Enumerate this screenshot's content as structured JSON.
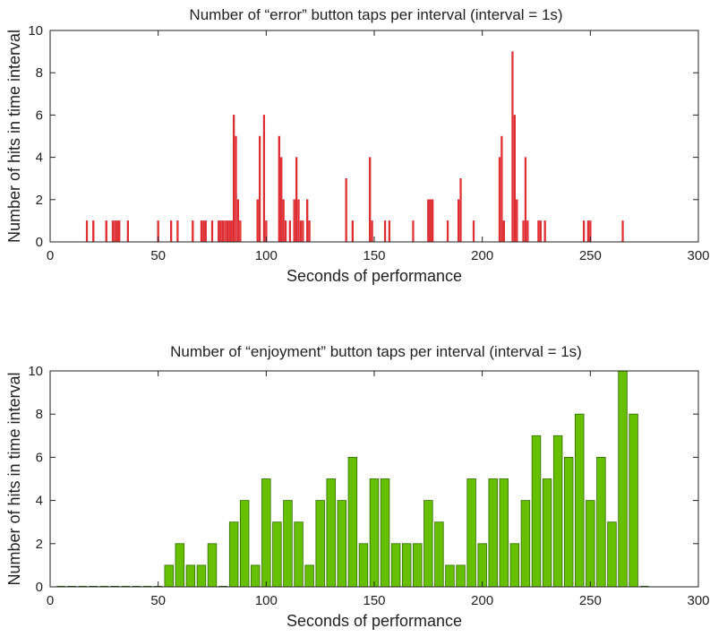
{
  "chart_data": [
    {
      "type": "bar",
      "title": "Number of “error” button taps per interval (interval = 1s)",
      "xlabel": "Seconds of performance",
      "ylabel": "Number of hits in time interval",
      "xlim": [
        0,
        300
      ],
      "ylim": [
        0,
        10
      ],
      "xticks": [
        0,
        50,
        100,
        150,
        200,
        250,
        300
      ],
      "yticks": [
        0,
        2,
        4,
        6,
        8,
        10
      ],
      "grid": false,
      "bar_color": "#e8322a",
      "bar_edge_color": "#c8102e",
      "x": [
        17,
        20,
        26,
        29,
        30,
        31,
        32,
        36,
        50,
        56,
        59,
        66,
        70,
        71,
        72,
        75,
        78,
        79,
        80,
        81,
        82,
        83,
        84,
        85,
        86,
        87,
        88,
        96,
        97,
        99,
        100,
        106,
        107,
        108,
        109,
        111,
        113,
        114,
        115,
        116,
        117,
        119,
        120,
        137,
        140,
        148,
        149,
        155,
        157,
        168,
        175,
        176,
        177,
        184,
        189,
        190,
        196,
        208,
        209,
        210,
        214,
        215,
        216,
        219,
        220,
        221,
        226,
        227,
        229,
        247,
        249,
        250,
        265
      ],
      "values": [
        1,
        1,
        1,
        1,
        1,
        1,
        1,
        1,
        1,
        1,
        1,
        1,
        1,
        1,
        1,
        1,
        1,
        1,
        1,
        1,
        1,
        1,
        1,
        6,
        5,
        2,
        1,
        2,
        5,
        6,
        1,
        5,
        4,
        2,
        1,
        1,
        2,
        4,
        2,
        1,
        1,
        2,
        1,
        3,
        1,
        4,
        1,
        1,
        1,
        1,
        2,
        2,
        2,
        1,
        2,
        3,
        1,
        4,
        5,
        1,
        9,
        6,
        2,
        1,
        4,
        1,
        1,
        1,
        1,
        1,
        1,
        1,
        1
      ]
    },
    {
      "type": "bar",
      "title": "Number of “enjoyment” button taps per interval (interval = 1s)",
      "xlabel": "Seconds of performance",
      "ylabel": "Number of hits in time interval",
      "xlim": [
        0,
        300
      ],
      "ylim": [
        0,
        10
      ],
      "xticks": [
        0,
        50,
        100,
        150,
        200,
        250,
        300
      ],
      "yticks": [
        0,
        2,
        4,
        6,
        8,
        10
      ],
      "grid": false,
      "bar_color": "#66c000",
      "bar_edge_color": "#2f6b00",
      "x": [
        5,
        10,
        15,
        20,
        25,
        30,
        35,
        40,
        45,
        50,
        55,
        60,
        65,
        70,
        75,
        80,
        85,
        90,
        95,
        100,
        105,
        110,
        115,
        120,
        125,
        130,
        135,
        140,
        145,
        150,
        155,
        160,
        165,
        170,
        175,
        180,
        185,
        190,
        195,
        200,
        205,
        210,
        215,
        220,
        225,
        230,
        235,
        240,
        245,
        250,
        255,
        260,
        265,
        270,
        275
      ],
      "values": [
        0,
        0,
        0,
        0,
        0,
        0,
        0,
        0,
        0,
        0,
        1,
        2,
        1,
        1,
        2,
        0,
        3,
        4,
        1,
        5,
        3,
        4,
        3,
        1,
        4,
        5,
        4,
        6,
        2,
        5,
        5,
        2,
        2,
        2,
        4,
        3,
        1,
        1,
        5,
        2,
        5,
        5,
        2,
        4,
        7,
        5,
        7,
        6,
        8,
        4,
        6,
        3,
        10,
        8,
        0
      ]
    }
  ]
}
